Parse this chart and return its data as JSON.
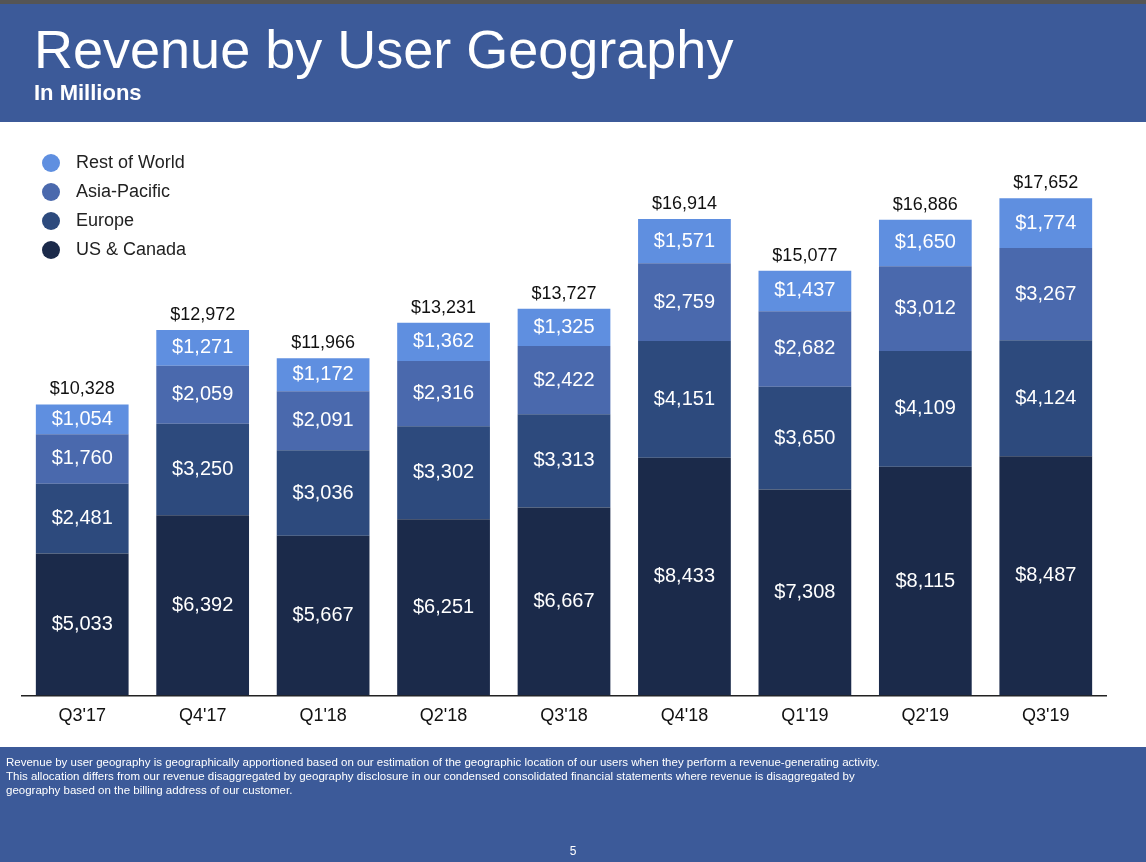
{
  "chart_data": {
    "type": "bar",
    "title": "Revenue by User Geography",
    "subtitle": "In Millions",
    "categories": [
      "Q3'17",
      "Q4'17",
      "Q1'18",
      "Q2'18",
      "Q3'18",
      "Q4'18",
      "Q1'19",
      "Q2'19",
      "Q3'19"
    ],
    "stacked": true,
    "legend": "top left",
    "grid": false,
    "series": [
      {
        "name": "US & Canada",
        "color": "#1b2a4a",
        "values": [
          5033,
          6392,
          5667,
          6251,
          6667,
          8433,
          7308,
          8115,
          8487
        ],
        "value_labels": [
          "$5,033",
          "$6,392",
          "$5,667",
          "$6,251",
          "$6,667",
          "$8,433",
          "$7,308",
          "$8,115",
          "$8,487"
        ]
      },
      {
        "name": "Europe",
        "color": "#2d4a7d",
        "values": [
          2481,
          3250,
          3036,
          3302,
          3313,
          4151,
          3650,
          4109,
          4124
        ],
        "value_labels": [
          "$2,481",
          "$3,250",
          "$3,036",
          "$3,302",
          "$3,313",
          "$4,151",
          "$3,650",
          "$4,109",
          "$4,124"
        ]
      },
      {
        "name": "Asia-Pacific",
        "color": "#4a69ad",
        "values": [
          1760,
          2059,
          2091,
          2316,
          2422,
          2759,
          2682,
          3012,
          3267
        ],
        "value_labels": [
          "$1,760",
          "$2,059",
          "$2,091",
          "$2,316",
          "$2,422",
          "$2,759",
          "$2,682",
          "$3,012",
          "$3,267"
        ]
      },
      {
        "name": "Rest of World",
        "color": "#5f8fe0",
        "values": [
          1054,
          1271,
          1172,
          1362,
          1325,
          1571,
          1437,
          1650,
          1774
        ],
        "value_labels": [
          "$1,054",
          "$1,271",
          "$1,172",
          "$1,362",
          "$1,325",
          "$1,571",
          "$1,437",
          "$1,650",
          "$1,774"
        ]
      }
    ],
    "totals": [
      "$10,328",
      "$12,972",
      "$11,966",
      "$13,231",
      "$13,727",
      "$16,914",
      "$15,077",
      "$16,886",
      "$17,652"
    ],
    "annotations": [
      "Revenue by user geography is geographically apportioned based on our estimation of the geographic location of our users when they perform a revenue-generating activity. This allocation differs from our revenue disaggregated by geography disclosure in our condensed consolidated financial statements where revenue is disaggregated by geography based on the billing address of our customer.",
      "5"
    ]
  }
}
